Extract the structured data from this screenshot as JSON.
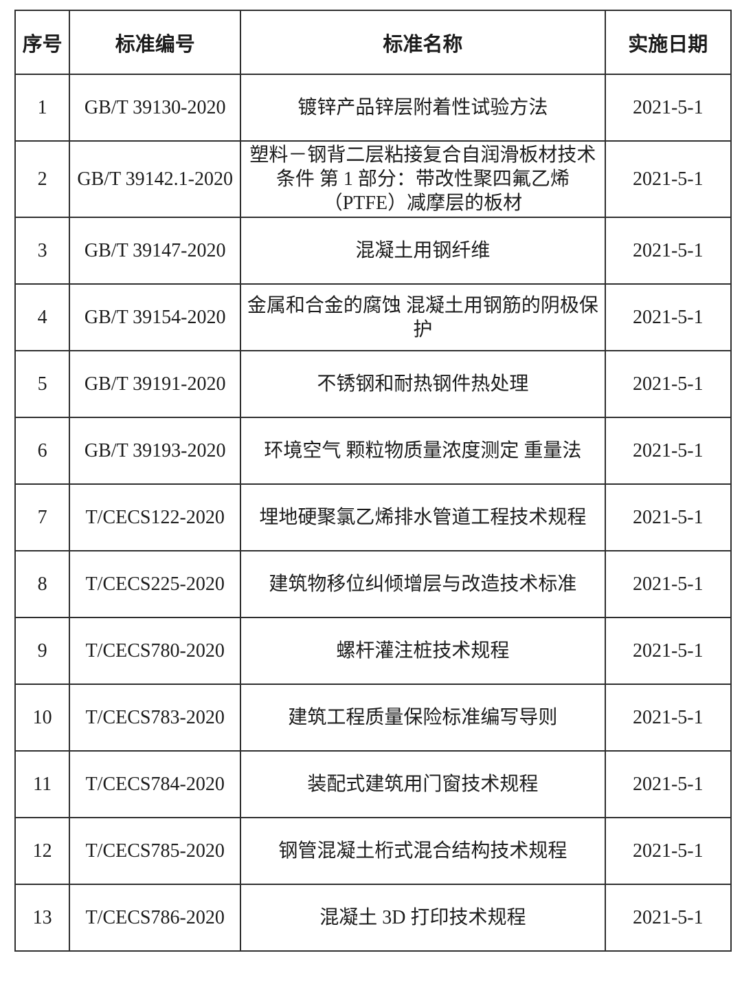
{
  "table": {
    "headers": [
      "序号",
      "标准编号",
      "标准名称",
      "实施日期"
    ],
    "rows": [
      {
        "no": "1",
        "code": "GB/T 39130-2020",
        "name": "镀锌产品锌层附着性试验方法",
        "date": "2021-5-1"
      },
      {
        "no": "2",
        "code": "GB/T 39142.1-2020",
        "name": "塑料－钢背二层粘接复合自润滑板材技术条件 第 1 部分：带改性聚四氟乙烯（PTFE）减摩层的板材",
        "date": "2021-5-1"
      },
      {
        "no": "3",
        "code": "GB/T 39147-2020",
        "name": "混凝土用钢纤维",
        "date": "2021-5-1"
      },
      {
        "no": "4",
        "code": "GB/T 39154-2020",
        "name": "金属和合金的腐蚀 混凝土用钢筋的阴极保护",
        "date": "2021-5-1"
      },
      {
        "no": "5",
        "code": "GB/T 39191-2020",
        "name": "不锈钢和耐热钢件热处理",
        "date": "2021-5-1"
      },
      {
        "no": "6",
        "code": "GB/T 39193-2020",
        "name": "环境空气 颗粒物质量浓度测定 重量法",
        "date": "2021-5-1"
      },
      {
        "no": "7",
        "code": "T/CECS122-2020",
        "name": "埋地硬聚氯乙烯排水管道工程技术规程",
        "date": "2021-5-1"
      },
      {
        "no": "8",
        "code": "T/CECS225-2020",
        "name": "建筑物移位纠倾增层与改造技术标准",
        "date": "2021-5-1"
      },
      {
        "no": "9",
        "code": "T/CECS780-2020",
        "name": "螺杆灌注桩技术规程",
        "date": "2021-5-1"
      },
      {
        "no": "10",
        "code": "T/CECS783-2020",
        "name": "建筑工程质量保险标准编写导则",
        "date": "2021-5-1"
      },
      {
        "no": "11",
        "code": "T/CECS784-2020",
        "name": "装配式建筑用门窗技术规程",
        "date": "2021-5-1"
      },
      {
        "no": "12",
        "code": "T/CECS785-2020",
        "name": "钢管混凝土桁式混合结构技术规程",
        "date": "2021-5-1"
      },
      {
        "no": "13",
        "code": "T/CECS786-2020",
        "name": "混凝土 3D 打印技术规程",
        "date": "2021-5-1"
      }
    ],
    "colors": {
      "border": "#2e2e2e",
      "text": "#1c1c1c",
      "background": "#ffffff"
    }
  }
}
